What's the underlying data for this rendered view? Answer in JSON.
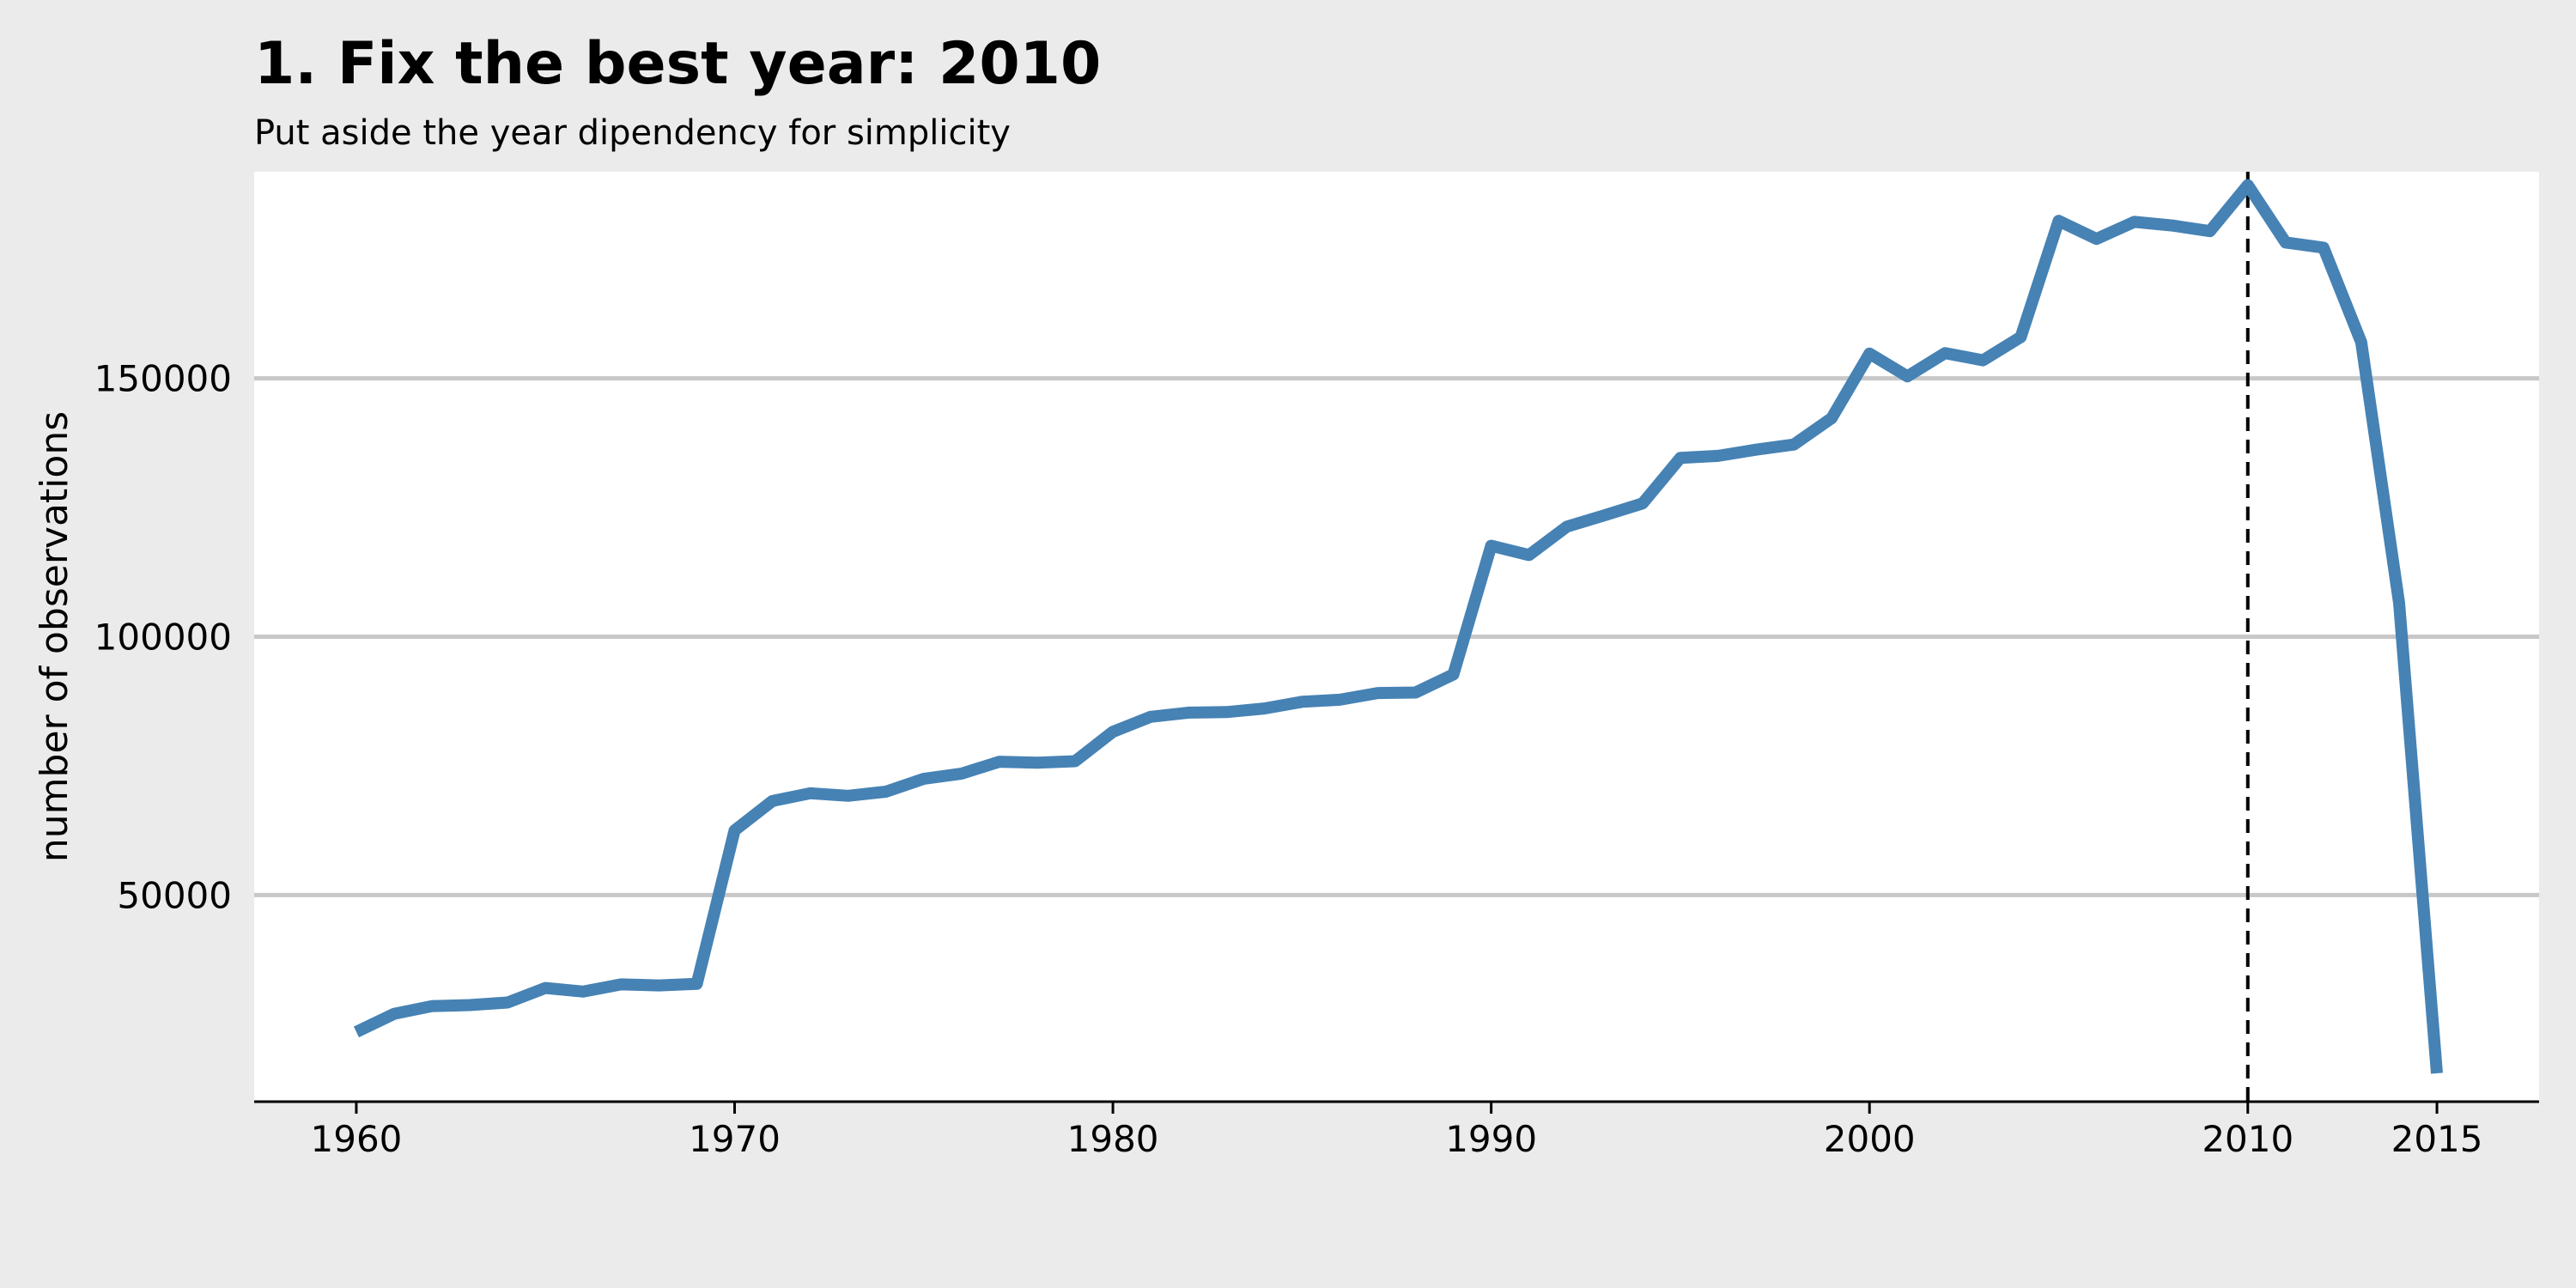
{
  "title": "1. Fix the best year: 2010",
  "subtitle": "Put aside the year dipendency for simplicity",
  "colors": {
    "background": "#ebebeb",
    "panel": "#ffffff",
    "line": "#4682b4",
    "grid": "#c8c8c8",
    "marker": "#000000"
  },
  "chart_data": {
    "type": "line",
    "xlabel": "",
    "ylabel": "number of observations",
    "xlim": [
      1957.3,
      2017.7
    ],
    "ylim": [
      10000,
      190000
    ],
    "x_ticks": [
      1960,
      1970,
      1980,
      1990,
      2000,
      2010,
      2015
    ],
    "y_ticks": [
      50000,
      100000,
      150000
    ],
    "grid": "horizontal",
    "legend": "none",
    "reference_line": {
      "x": 2010,
      "style": "dashed"
    },
    "series": [
      {
        "x": [
          1960,
          1961,
          1962,
          1963,
          1964,
          1965,
          1966,
          1967,
          1968,
          1969,
          1970,
          1971,
          1972,
          1973,
          1974,
          1975,
          1976,
          1977,
          1978,
          1979,
          1980,
          1981,
          1982,
          1983,
          1984,
          1985,
          1986,
          1987,
          1988,
          1989,
          1990,
          1991,
          1992,
          1993,
          1994,
          1995,
          1996,
          1997,
          1998,
          1999,
          2000,
          2001,
          2002,
          2003,
          2004,
          2005,
          2006,
          2007,
          2008,
          2009,
          2010,
          2011,
          2012,
          2013,
          2014,
          2015
        ],
        "y": [
          23500,
          27000,
          28500,
          28700,
          29200,
          32000,
          31300,
          32700,
          32500,
          32800,
          62500,
          68200,
          69700,
          69200,
          70000,
          72500,
          73500,
          75800,
          75600,
          75900,
          81600,
          84500,
          85300,
          85400,
          86100,
          87400,
          87800,
          89100,
          89200,
          92700,
          117600,
          115800,
          121300,
          123500,
          125800,
          134600,
          135000,
          136200,
          137200,
          142300,
          154800,
          150400,
          154900,
          153500,
          158000,
          180500,
          177000,
          180300,
          179600,
          178500,
          187400,
          176300,
          175300,
          157000,
          106500,
          15500
        ]
      }
    ]
  }
}
